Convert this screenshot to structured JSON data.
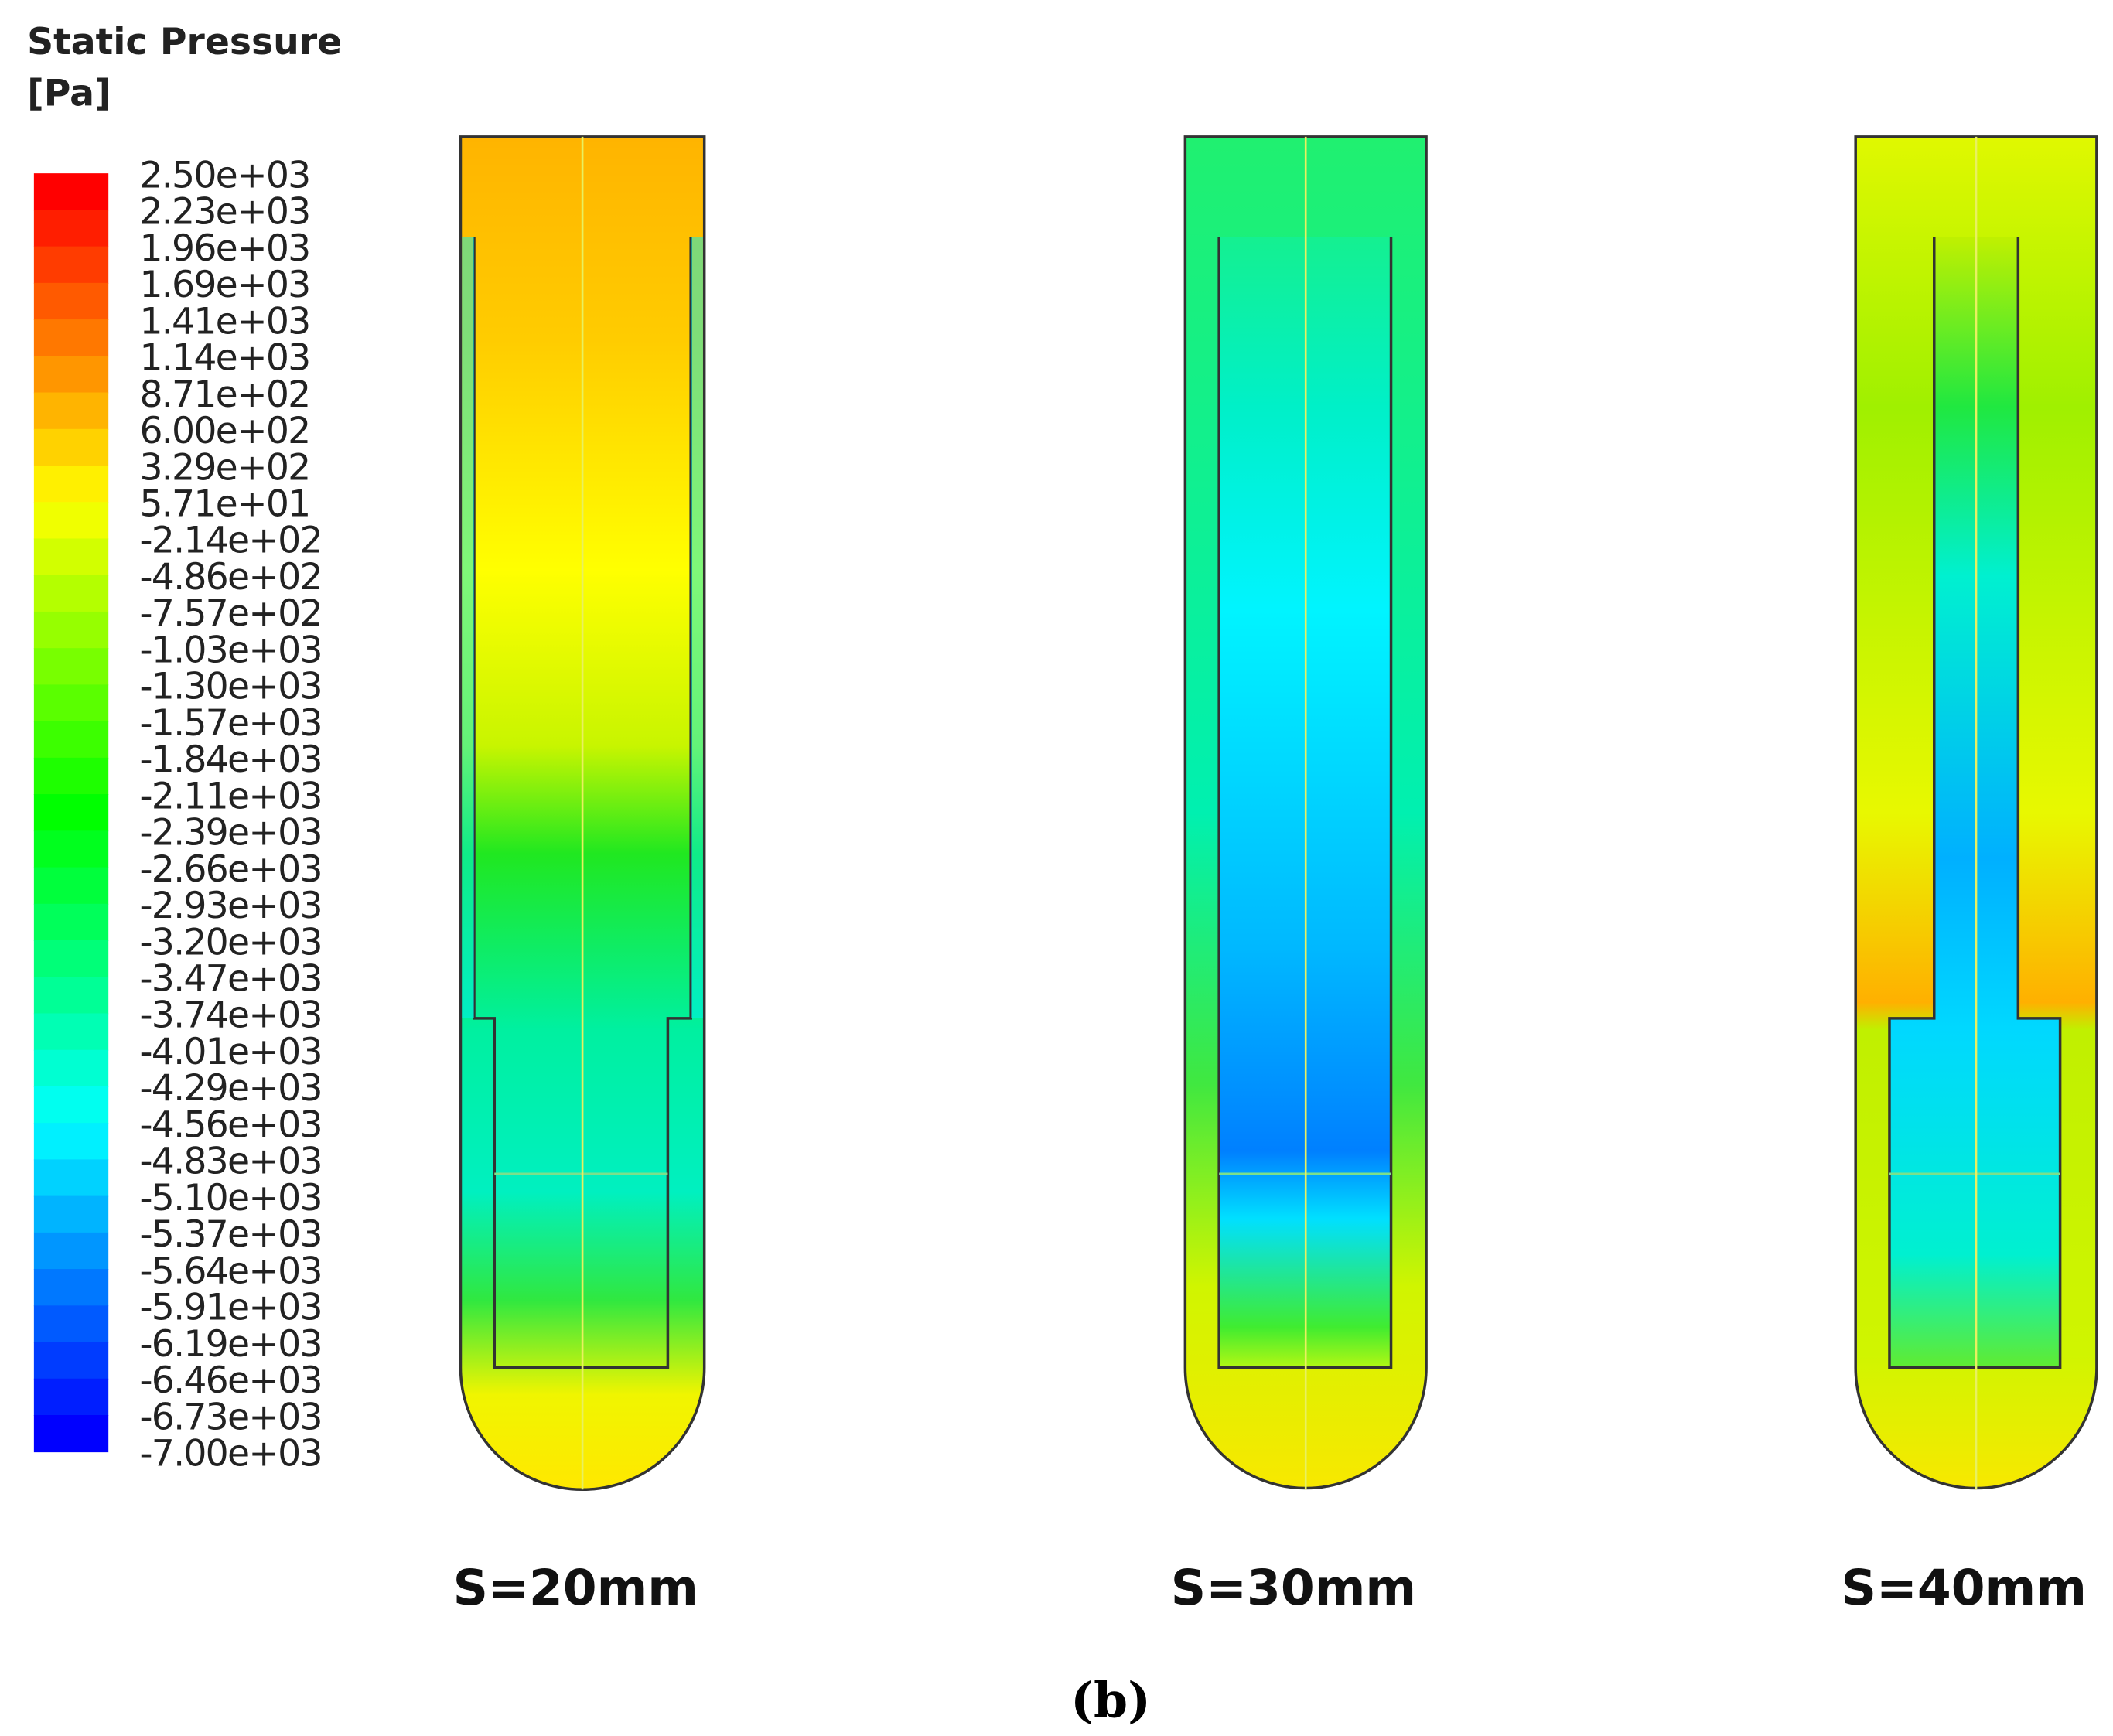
{
  "legend": {
    "title": "Static Pressure",
    "unit": "[Pa]",
    "labels": [
      "2.50e+03",
      "2.23e+03",
      "1.96e+03",
      "1.69e+03",
      "1.41e+03",
      "1.14e+03",
      "8.71e+02",
      "6.00e+02",
      "3.29e+02",
      "5.71e+01",
      "-2.14e+02",
      "-4.86e+02",
      "-7.57e+02",
      "-1.03e+03",
      "-1.30e+03",
      "-1.57e+03",
      "-1.84e+03",
      "-2.11e+03",
      "-2.39e+03",
      "-2.66e+03",
      "-2.93e+03",
      "-3.20e+03",
      "-3.47e+03",
      "-3.74e+03",
      "-4.01e+03",
      "-4.29e+03",
      "-4.56e+03",
      "-4.83e+03",
      "-5.10e+03",
      "-5.37e+03",
      "-5.64e+03",
      "-5.91e+03",
      "-6.19e+03",
      "-6.46e+03",
      "-6.73e+03",
      "-7.00e+03"
    ]
  },
  "panels": [
    {
      "label": "S=20mm"
    },
    {
      "label": "S=30mm"
    },
    {
      "label": "S=40mm"
    }
  ],
  "caption": "(b)"
}
